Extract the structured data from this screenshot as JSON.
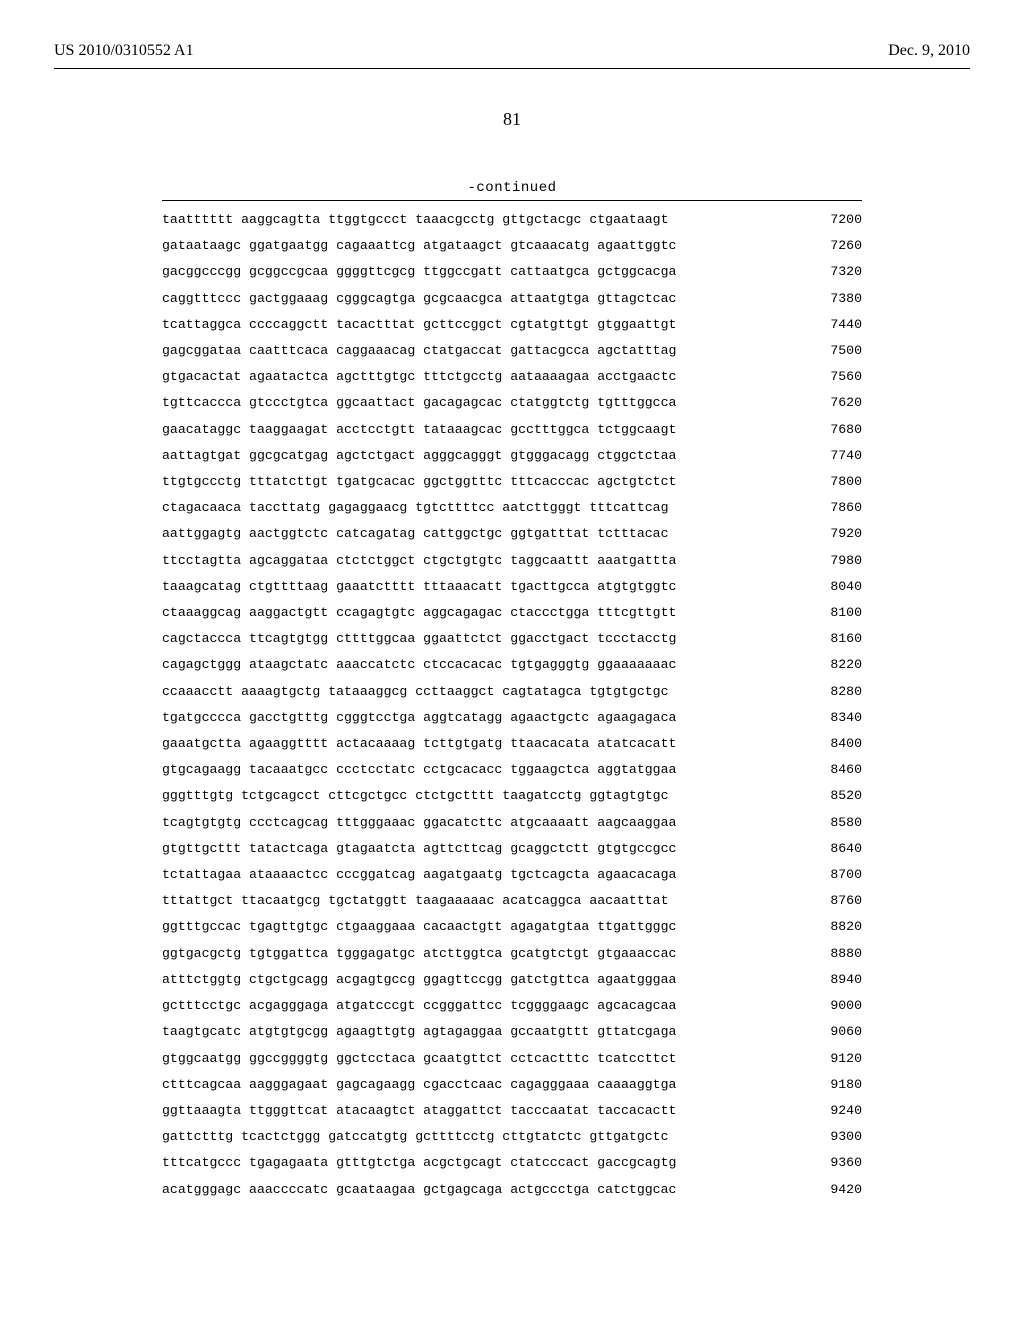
{
  "header": {
    "left": "US 2010/0310552 A1",
    "right": "Dec. 9, 2010"
  },
  "page_number": "81",
  "continued_label": "-continued",
  "sequence": {
    "font_family": "Courier New",
    "font_size_pt": 10,
    "rows": [
      {
        "seq": "taatttttt aaggcagtta ttggtgccct taaacgcctg gttgctacgc ctgaataagt",
        "pos": "7200"
      },
      {
        "seq": "gataataagc ggatgaatgg cagaaattcg atgataagct gtcaaacatg agaattggtc",
        "pos": "7260"
      },
      {
        "seq": "gacggcccgg gcggccgcaa ggggttcgcg ttggccgatt cattaatgca gctggcacga",
        "pos": "7320"
      },
      {
        "seq": "caggtttccc gactggaaag cgggcagtga gcgcaacgca attaatgtga gttagctcac",
        "pos": "7380"
      },
      {
        "seq": "tcattaggca ccccaggctt tacactttat gcttccggct cgtatgttgt gtggaattgt",
        "pos": "7440"
      },
      {
        "seq": "gagcggataa caatttcaca caggaaacag ctatgaccat gattacgcca agctatttag",
        "pos": "7500"
      },
      {
        "seq": "gtgacactat agaatactca agctttgtgc tttctgcctg aataaaagaa acctgaactc",
        "pos": "7560"
      },
      {
        "seq": "tgttcaccca gtccctgtca ggcaattact gacagagcac ctatggtctg tgtttggcca",
        "pos": "7620"
      },
      {
        "seq": "gaacataggc taaggaagat acctcctgtt tataaagcac gcctttggca tctggcaagt",
        "pos": "7680"
      },
      {
        "seq": "aattagtgat ggcgcatgag agctctgact agggcagggt gtgggacagg ctggctctaa",
        "pos": "7740"
      },
      {
        "seq": "ttgtgccctg tttatcttgt tgatgcacac ggctggtttc tttcacccac agctgtctct",
        "pos": "7800"
      },
      {
        "seq": "ctagacaaca taccttatg gagaggaacg tgtcttttcc aatcttgggt tttcattcag",
        "pos": "7860"
      },
      {
        "seq": "aattggagtg aactggtctc catcagatag cattggctgc ggtgatttat tctttacac",
        "pos": "7920"
      },
      {
        "seq": "ttcctagtta agcaggataa ctctctggct ctgctgtgtc taggcaattt aaatgattta",
        "pos": "7980"
      },
      {
        "seq": "taaagcatag ctgttttaag gaaatctttt tttaaacatt tgacttgcca atgtgtggtc",
        "pos": "8040"
      },
      {
        "seq": "ctaaaggcag aaggactgtt ccagagtgtc aggcagagac ctaccctgga tttcgttgtt",
        "pos": "8100"
      },
      {
        "seq": "cagctaccca ttcagtgtgg cttttggcaa ggaattctct ggacctgact tccctacctg",
        "pos": "8160"
      },
      {
        "seq": "cagagctggg ataagctatc aaaccatctc ctccacacac tgtgagggtg ggaaaaaaac",
        "pos": "8220"
      },
      {
        "seq": "ccaaacctt aaaagtgctg tataaaggcg ccttaaggct cagtatagca tgtgtgctgc",
        "pos": "8280"
      },
      {
        "seq": "tgatgcccca gacctgtttg cgggtcctga aggtcatagg agaactgctc agaagagaca",
        "pos": "8340"
      },
      {
        "seq": "gaaatgctta agaaggtttt actacaaaag tcttgtgatg ttaacacata atatcacatt",
        "pos": "8400"
      },
      {
        "seq": "gtgcagaagg tacaaatgcc ccctcctatc cctgcacacc tggaagctca aggtatggaa",
        "pos": "8460"
      },
      {
        "seq": "gggtttgtg tctgcagcct cttcgctgcc ctctgctttt taagatcctg ggtagtgtgc",
        "pos": "8520"
      },
      {
        "seq": "tcagtgtgtg ccctcagcag tttgggaaac ggacatcttc atgcaaaatt aagcaaggaa",
        "pos": "8580"
      },
      {
        "seq": "gtgttgcttt tatactcaga gtagaatcta agttcttcag gcaggctctt gtgtgccgcc",
        "pos": "8640"
      },
      {
        "seq": "tctattagaa ataaaactcc cccggatcag aagatgaatg tgctcagcta agaacacaga",
        "pos": "8700"
      },
      {
        "seq": "tttattgct ttacaatgcg tgctatggtt taagaaaaac acatcaggca aacaatttat",
        "pos": "8760"
      },
      {
        "seq": "ggtttgccac tgagttgtgc ctgaaggaaa cacaactgtt agagatgtaa ttgattgggc",
        "pos": "8820"
      },
      {
        "seq": "ggtgacgctg tgtggattca tgggagatgc atcttggtca gcatgtctgt gtgaaaccac",
        "pos": "8880"
      },
      {
        "seq": "atttctggtg ctgctgcagg acgagtgccg ggagttccgg gatctgttca agaatgggaa",
        "pos": "8940"
      },
      {
        "seq": "gctttcctgc acgagggaga atgatcccgt ccgggattcc tcggggaagc agcacagcaa",
        "pos": "9000"
      },
      {
        "seq": "taagtgcatc atgtgtgcgg agaagttgtg agtagaggaa gccaatgttt gttatcgaga",
        "pos": "9060"
      },
      {
        "seq": "gtggcaatgg ggccggggtg ggctcctaca gcaatgttct cctcactttc tcatccttct",
        "pos": "9120"
      },
      {
        "seq": "ctttcagcaa aagggagaat gagcagaagg cgacctcaac cagagggaaa caaaaggtga",
        "pos": "9180"
      },
      {
        "seq": "ggttaaagta ttgggttcat atacaagtct ataggattct tacccaatat taccacactt",
        "pos": "9240"
      },
      {
        "seq": "gattctttg tcactctggg gatccatgtg gcttttcctg cttgtatctc gttgatgctc",
        "pos": "9300"
      },
      {
        "seq": "tttcatgccc tgagagaata gtttgtctga acgctgcagt ctatcccact gaccgcagtg",
        "pos": "9360"
      },
      {
        "seq": "acatgggagc aaaccccatc gcaataagaa gctgagcaga actgccctga catctggcac",
        "pos": "9420"
      }
    ]
  }
}
